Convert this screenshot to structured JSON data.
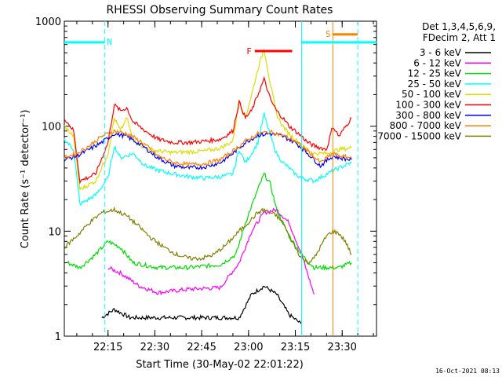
{
  "chart_data": {
    "type": "line",
    "title": "RHESSI Observing Summary Count Rates",
    "xlabel": "Start Time (30-May-02 22:01:22)",
    "ylabel": "Count Rate (s⁻¹ detector⁻¹)",
    "yscale": "log",
    "ylim": [
      1,
      1000
    ],
    "xlim_minutes": [
      0,
      100
    ],
    "x_ticks": [
      {
        "minute": 14,
        "label": "22:15"
      },
      {
        "minute": 29,
        "label": "22:30"
      },
      {
        "minute": 44,
        "label": "22:45"
      },
      {
        "minute": 59,
        "label": "23:00"
      },
      {
        "minute": 74,
        "label": "23:15"
      },
      {
        "minute": 89,
        "label": "23:30"
      }
    ],
    "y_ticks": [
      {
        "value": 1,
        "label": "1"
      },
      {
        "value": 10,
        "label": "10"
      },
      {
        "value": 100,
        "label": "100"
      },
      {
        "value": 1000,
        "label": "1000"
      }
    ],
    "legend_header": [
      "Det 1,3,4,5,6,9,",
      "FDecim 2, Att 1"
    ],
    "legend_position": "top-right, outside plot",
    "series": [
      {
        "name": "3 - 6 keV",
        "color": "#000000",
        "x": [
          12,
          16,
          21,
          56,
          60,
          64,
          68,
          72,
          76
        ],
        "y": [
          1.5,
          1.8,
          1.5,
          1.5,
          2.5,
          3.0,
          2.5,
          1.6,
          1.3
        ]
      },
      {
        "name": "6 - 12 keV",
        "color": "#ff00ff",
        "x": [
          14,
          18,
          24,
          30,
          40,
          50,
          56,
          60,
          64,
          68,
          72,
          76,
          80
        ],
        "y": [
          4.5,
          4.0,
          3.0,
          2.6,
          2.8,
          2.9,
          5,
          10,
          15,
          16,
          12,
          6,
          2.5
        ]
      },
      {
        "name": "12 - 25 keV",
        "color": "#00dd00",
        "x": [
          1,
          5,
          10,
          14,
          18,
          22,
          30,
          40,
          50,
          55,
          58,
          62,
          64,
          66,
          68,
          72,
          76,
          80,
          84,
          88,
          92
        ],
        "y": [
          5,
          4.5,
          6,
          8,
          7,
          5,
          4.5,
          4.5,
          4.8,
          6,
          12,
          25,
          35,
          28,
          16,
          9,
          6,
          4.5,
          4.5,
          4.5,
          5
        ]
      },
      {
        "name": "25 - 50 keV",
        "color": "#00ffff",
        "x": [
          0,
          3,
          5,
          10,
          14,
          16,
          18,
          22,
          26,
          30,
          35,
          40,
          45,
          50,
          54,
          56,
          58,
          60,
          62,
          64,
          66,
          68,
          70,
          72,
          74,
          76,
          78,
          80,
          84,
          88,
          92
        ],
        "y": [
          75,
          60,
          18,
          22,
          32,
          65,
          50,
          55,
          42,
          38,
          35,
          33,
          32,
          33,
          35,
          60,
          45,
          55,
          70,
          130,
          80,
          55,
          45,
          40,
          35,
          32,
          31,
          30,
          35,
          40,
          45
        ]
      },
      {
        "name": "50 - 100 keV",
        "color": "#dddd00",
        "x": [
          0,
          3,
          5,
          10,
          14,
          16,
          18,
          20,
          22,
          24,
          26,
          30,
          35,
          40,
          45,
          50,
          54,
          56,
          58,
          60,
          62,
          64,
          66,
          68,
          70,
          72,
          74,
          76,
          78,
          80,
          84,
          88,
          92
        ],
        "y": [
          100,
          80,
          25,
          30,
          55,
          120,
          90,
          120,
          75,
          68,
          62,
          58,
          56,
          57,
          58,
          62,
          72,
          180,
          120,
          200,
          350,
          550,
          250,
          130,
          100,
          85,
          75,
          65,
          60,
          55,
          55,
          60,
          62
        ]
      },
      {
        "name": "100 - 300 keV",
        "color": "#ff0000",
        "x": [
          0,
          3,
          5,
          10,
          14,
          16,
          18,
          20,
          22,
          26,
          30,
          35,
          40,
          45,
          50,
          54,
          56,
          58,
          60,
          62,
          64,
          66,
          68,
          70,
          72,
          74,
          76,
          78,
          80,
          84,
          86,
          88,
          92
        ],
        "y": [
          120,
          90,
          30,
          35,
          70,
          160,
          140,
          150,
          110,
          90,
          75,
          70,
          70,
          72,
          75,
          90,
          170,
          120,
          140,
          200,
          280,
          180,
          140,
          120,
          100,
          90,
          80,
          70,
          65,
          60,
          100,
          80,
          120
        ]
      },
      {
        "name": "300 - 800 keV",
        "color": "#0000ff",
        "x": [
          0,
          4,
          8,
          12,
          16,
          20,
          25,
          30,
          35,
          40,
          45,
          50,
          54,
          58,
          62,
          66,
          70,
          74,
          78,
          82,
          86,
          88,
          92
        ],
        "y": [
          48,
          52,
          60,
          70,
          85,
          80,
          65,
          50,
          42,
          40,
          41,
          45,
          55,
          70,
          82,
          85,
          80,
          70,
          55,
          42,
          52,
          50,
          48
        ]
      },
      {
        "name": "800 - 7000 keV",
        "color": "#ff8000",
        "x": [
          0,
          4,
          8,
          12,
          16,
          20,
          25,
          30,
          35,
          40,
          45,
          50,
          54,
          58,
          62,
          66,
          70,
          74,
          78,
          82,
          86,
          88,
          92
        ],
        "y": [
          50,
          55,
          65,
          80,
          90,
          85,
          70,
          52,
          45,
          43,
          44,
          48,
          58,
          72,
          85,
          88,
          82,
          72,
          58,
          45,
          55,
          52,
          50
        ]
      },
      {
        "name": "7000 - 15000 keV",
        "color": "#808000",
        "x": [
          0,
          4,
          8,
          12,
          16,
          20,
          24,
          28,
          32,
          36,
          40,
          44,
          48,
          52,
          56,
          60,
          62,
          64,
          66,
          68,
          70,
          72,
          74,
          76,
          78,
          80,
          84,
          86,
          88,
          90,
          92
        ],
        "y": [
          7,
          9,
          12,
          15,
          16,
          14,
          11,
          8.5,
          7,
          6,
          5.5,
          5.5,
          6,
          7.5,
          10,
          13,
          15,
          16,
          15,
          14,
          12,
          9,
          7,
          5.5,
          5,
          5.5,
          9,
          10,
          9.5,
          8,
          6
        ]
      }
    ],
    "vlines": [
      {
        "minute": 13,
        "color": "#00ffff",
        "style": "dashed"
      },
      {
        "minute": 76,
        "color": "#00ffff",
        "style": "solid"
      },
      {
        "minute": 86,
        "color": "#ff8000",
        "style": "solid"
      },
      {
        "minute": 94,
        "color": "#00ffff",
        "style": "dashed"
      }
    ],
    "bars": [
      {
        "label": "N",
        "color": "#00ffff",
        "x0": 0,
        "x1": 13,
        "y": 630
      },
      {
        "label": "N",
        "color": "#00ffff",
        "x0": 76,
        "x1": 100,
        "y": 630
      },
      {
        "label": "F",
        "color": "#ff0000",
        "x0": 61,
        "x1": 73,
        "y": 520
      },
      {
        "label": "S",
        "color": "#ff8000",
        "x0": 86,
        "x1": 94,
        "y": 750
      }
    ],
    "flags": [
      {
        "label": "N",
        "color": "#00ffff",
        "minute": 14.5,
        "y": 640
      },
      {
        "label": "F",
        "color": "#ff0000",
        "minute": 59.2,
        "y": 520
      },
      {
        "label": "S",
        "color": "#ff8000",
        "minute": 84.5,
        "y": 760
      }
    ]
  },
  "timestamp": "16-Oct-2021 08:13"
}
